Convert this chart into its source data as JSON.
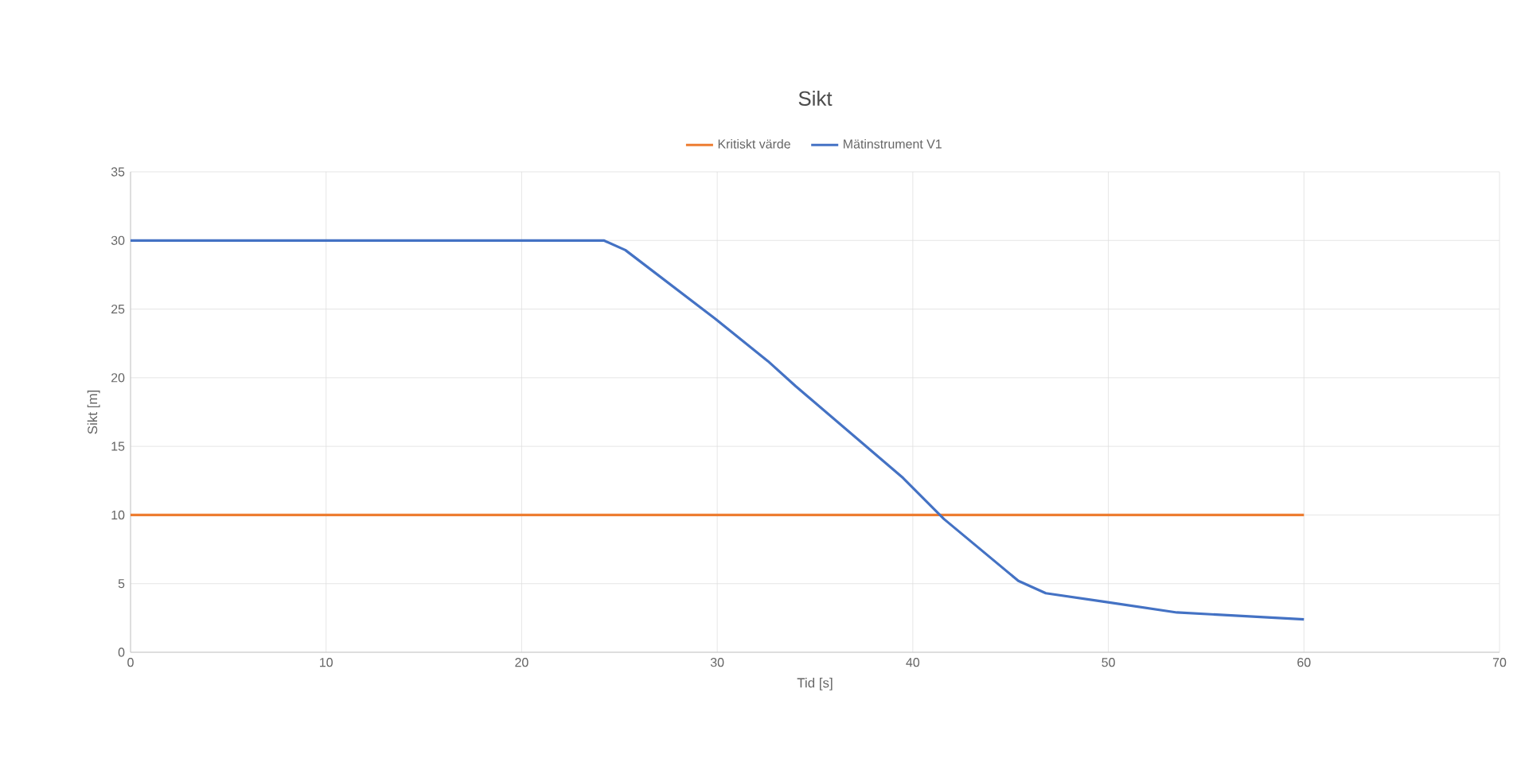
{
  "chart_data": {
    "type": "line",
    "title": "Sikt",
    "xlabel": "Tid [s]",
    "ylabel": "Sikt [m]",
    "series": [
      {
        "name": "Kritiskt värde",
        "color": "#ed7d31",
        "x": [
          0,
          60
        ],
        "values": [
          10,
          10
        ]
      },
      {
        "name": "Mätinstrument V1",
        "color": "#4472c4",
        "x": [
          0,
          24.2,
          25.3,
          29.9,
          32.6,
          34,
          39.5,
          41.6,
          45.4,
          46.8,
          49.7,
          53.5,
          60
        ],
        "values": [
          30,
          30,
          29.3,
          24.3,
          21.2,
          19.4,
          12.7,
          9.7,
          5.2,
          4.3,
          3.7,
          2.9,
          2.4
        ]
      }
    ],
    "xlim": [
      0,
      70
    ],
    "xticks": [
      0,
      10,
      20,
      30,
      40,
      50,
      60,
      70
    ],
    "ylim": [
      0,
      35
    ],
    "yticks": [
      0,
      5,
      10,
      15,
      20,
      25,
      30,
      35
    ],
    "grid": true,
    "legend": "top",
    "marker": "none",
    "line_style": "solid"
  }
}
